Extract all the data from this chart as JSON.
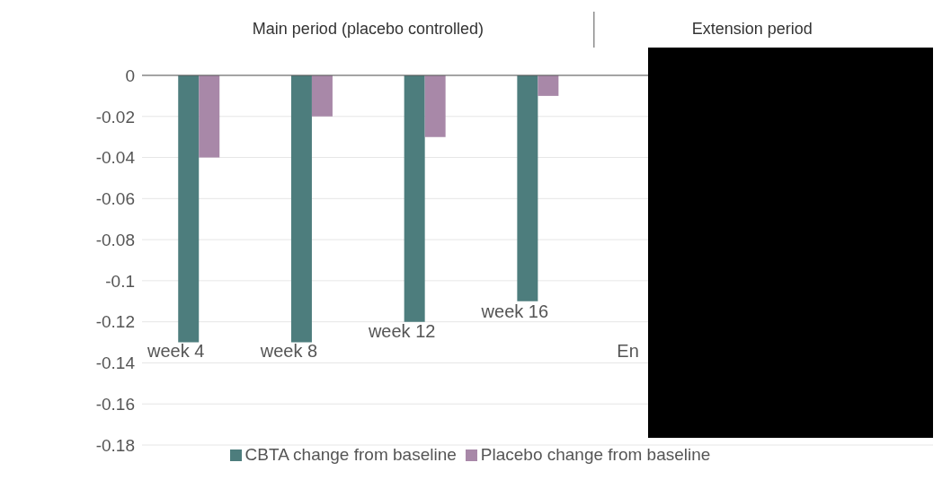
{
  "chart_data": {
    "type": "bar",
    "categories": [
      "week 4",
      "week 8",
      "week 12",
      "week 16",
      "En",
      null,
      null
    ],
    "series": [
      {
        "name": "CBTA change from baseline",
        "color": "#4d7d7d",
        "values": [
          -0.13,
          -0.13,
          -0.12,
          -0.11,
          null,
          null,
          null
        ]
      },
      {
        "name": "Placebo change from baseline",
        "color": "#a888a8",
        "values": [
          -0.04,
          -0.02,
          -0.03,
          -0.01,
          null,
          null,
          null
        ]
      }
    ],
    "ylim": [
      -0.18,
      0
    ],
    "yticks": [
      0,
      -0.02,
      -0.04,
      -0.06,
      -0.08,
      -0.1,
      -0.12,
      -0.14,
      -0.16,
      -0.18
    ],
    "annotations": [
      "Main period (placebo controlled)",
      "Extension period"
    ],
    "grid": "y",
    "legend": "bottom"
  }
}
